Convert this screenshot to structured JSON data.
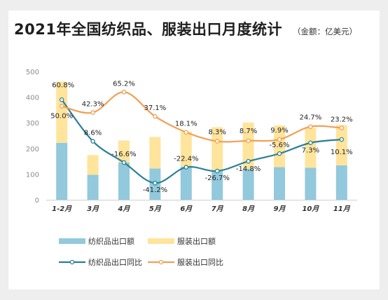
{
  "title": "2021年全国纺织品、服装出口月度统计",
  "subtitle": "（金额：亿美元）",
  "colors": {
    "textile_bar": "#92c9dc",
    "apparel_bar": "#ffe49c",
    "textile_line": "#2a7f97",
    "apparel_line": "#f0a055"
  },
  "chart_data": {
    "type": "bar",
    "categories": [
      "1-2月",
      "3月",
      "4月",
      "5月",
      "6月",
      "7月",
      "8月",
      "9月",
      "10月",
      "11月"
    ],
    "ylim": [
      0,
      500
    ],
    "yticks": [
      "0",
      "100",
      "200",
      "300",
      "400",
      "500"
    ],
    "grid": false,
    "legend": "bottom",
    "series": [
      {
        "name": "纺织品出口额",
        "kind": "bar",
        "stack": "total",
        "values": [
          222,
          97,
          145,
          122,
          129,
          115,
          121,
          127,
          125,
          134
        ]
      },
      {
        "name": "服装出口额",
        "kind": "bar",
        "stack": "total",
        "values": [
          238,
          77,
          86,
          123,
          137,
          168,
          180,
          163,
          155,
          157
        ]
      },
      {
        "name": "纺织品出口同比",
        "kind": "line",
        "values": [
          390,
          228,
          145,
          65,
          127,
          112,
          150,
          180,
          222,
          235
        ]
      },
      {
        "name": "服装出口同比",
        "kind": "line",
        "values": [
          365,
          340,
          420,
          325,
          263,
          228,
          230,
          235,
          285,
          280
        ]
      }
    ],
    "annotations": {
      "textile_yoy": [
        "60.8%",
        "8.6%",
        "-16.6%",
        "-41.2%",
        "-22.4%",
        "-26.7%",
        "-14.8%",
        "-5.6%",
        "7.3%",
        "10.1%"
      ],
      "apparel_yoy": [
        "50.0%",
        "42.3%",
        "65.2%",
        "37.1%",
        "18.1%",
        "8.3%",
        "8.7%",
        "9.9%",
        "24.7%",
        "23.2%"
      ]
    }
  }
}
